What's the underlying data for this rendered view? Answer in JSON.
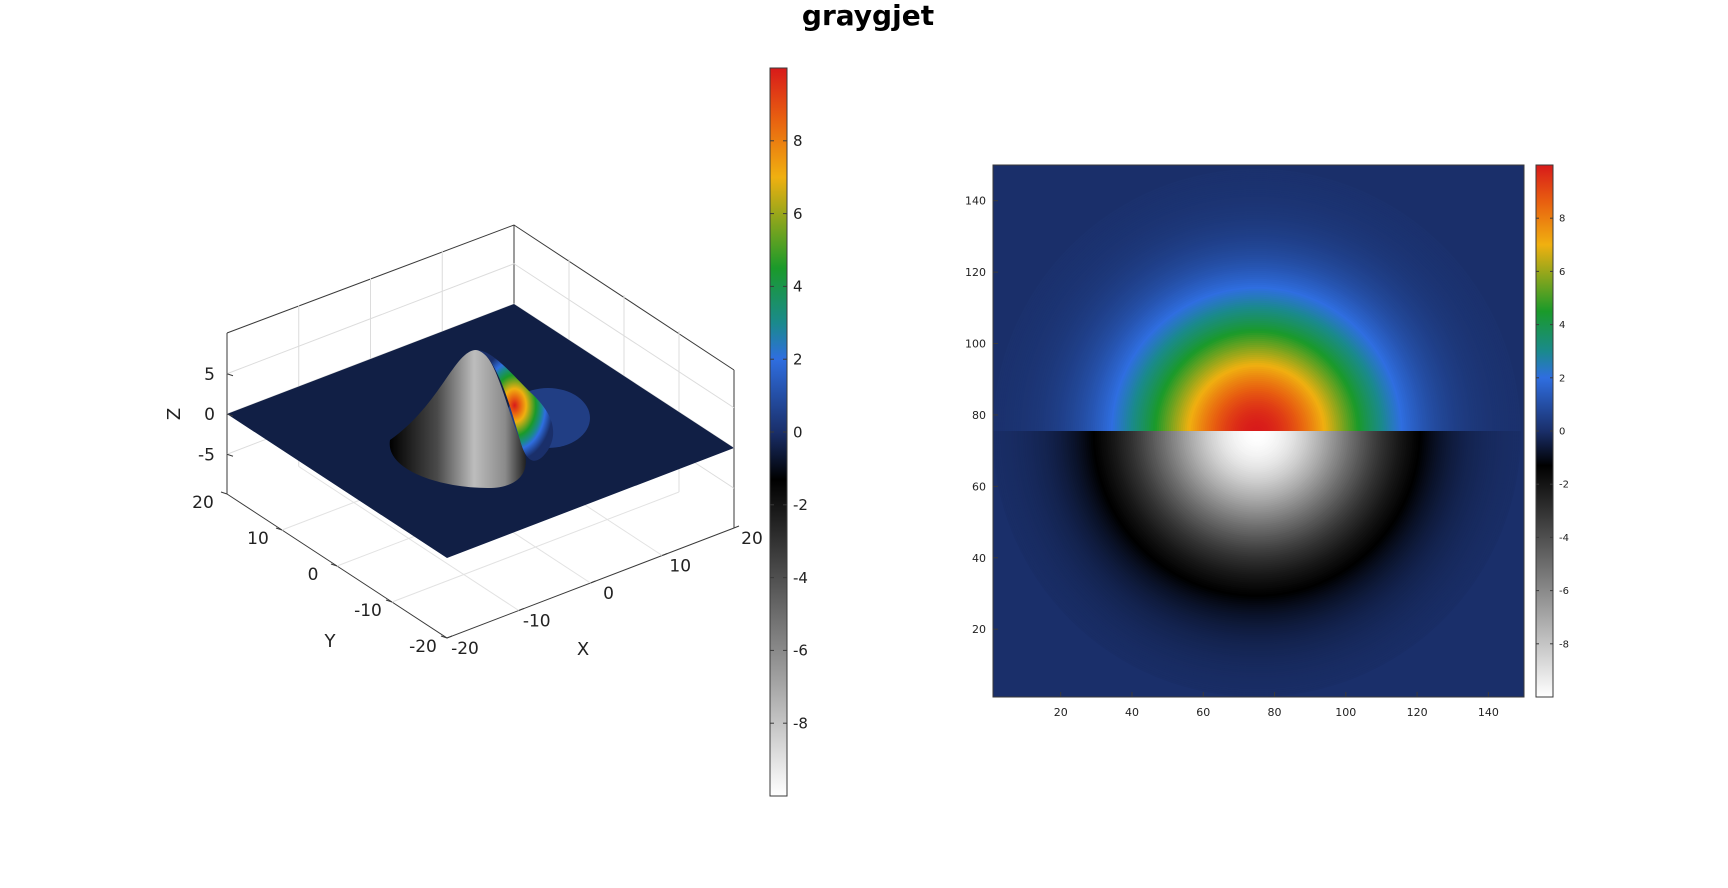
{
  "figure": {
    "title": "graygjet"
  },
  "chart_data": [
    {
      "type": "surface",
      "title": "",
      "xlabel": "X",
      "ylabel": "Y",
      "zlabel": "Z",
      "xlim": [
        -20,
        20
      ],
      "ylim": [
        -20,
        20
      ],
      "zlim": [
        -10,
        10
      ],
      "x_ticks": [
        -20,
        -10,
        0,
        10,
        20
      ],
      "y_ticks": [
        -20,
        -10,
        0,
        10,
        20
      ],
      "z_ticks": [
        -5,
        0,
        5
      ],
      "grid": true,
      "surface": "gaussian bump of peak 10 centred at (0, 0); values on one side of x = 0 are negated (mapped to the gray half of the colormap)",
      "peak": 10,
      "colorbar": {
        "colormap": "graygjet",
        "range": [
          -10,
          10
        ],
        "ticks": [
          -8,
          -6,
          -4,
          -2,
          0,
          2,
          4,
          6,
          8
        ]
      }
    },
    {
      "type": "heatmap",
      "title": "",
      "xlabel": "",
      "ylabel": "",
      "xlim": [
        1,
        150
      ],
      "ylim": [
        1,
        150
      ],
      "x_ticks": [
        20,
        40,
        60,
        80,
        100,
        120,
        140
      ],
      "y_ticks": [
        20,
        40,
        60,
        80,
        100,
        120,
        140
      ],
      "center": [
        75,
        75
      ],
      "split_row": 75,
      "top_half": "positive gaussian, peak 10 (jet colours)",
      "bottom_half": "negative gaussian, peak -10 (gray colours)",
      "colorbar": {
        "colormap": "graygjet",
        "range": [
          -10,
          10
        ],
        "ticks": [
          -8,
          -6,
          -4,
          -2,
          0,
          2,
          4,
          6,
          8
        ]
      }
    }
  ],
  "colormap_stops": [
    {
      "value": -10,
      "color": "#ffffff"
    },
    {
      "value": -1.3,
      "color": "#000000"
    },
    {
      "value": 0,
      "color": "#1a2f6a"
    },
    {
      "value": 2,
      "color": "#2f6ee0"
    },
    {
      "value": 3,
      "color": "#1a8a8c"
    },
    {
      "value": 4.5,
      "color": "#1a9a2a"
    },
    {
      "value": 7,
      "color": "#f0b010"
    },
    {
      "value": 8.6,
      "color": "#e86010"
    },
    {
      "value": 10,
      "color": "#d81a1a"
    }
  ]
}
